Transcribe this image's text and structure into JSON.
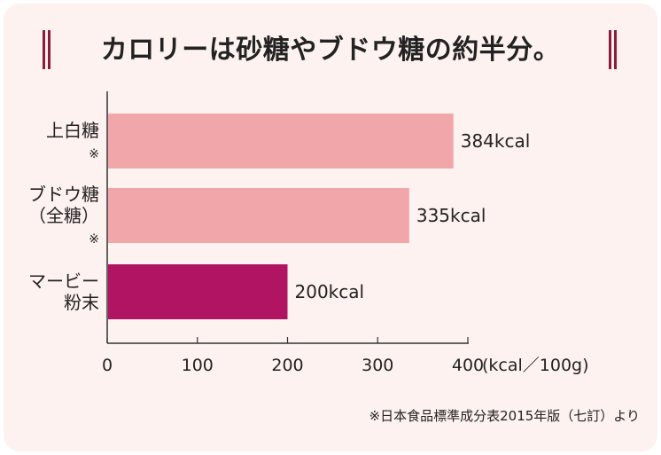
{
  "title": "カロリーは砂糖やブドウ糖の約半分。",
  "unit_label": "(kcal／100g)",
  "source_note": "※日本食品標準成分表2015年版（七訂）より",
  "colors": {
    "background": "#fdf2f0",
    "bar_light": "#f1a7a9",
    "bar_highlight": "#b01462",
    "accent": "#8c1c3c",
    "text": "#222222"
  },
  "chart_data": {
    "type": "bar",
    "orientation": "horizontal",
    "title": "カロリーは砂糖やブドウ糖の約半分。",
    "categories": [
      {
        "lines": [
          "上白糖",
          "※"
        ]
      },
      {
        "lines": [
          "ブドウ糖",
          "（全糖）",
          "※"
        ]
      },
      {
        "lines": [
          "マービー",
          "粉末"
        ]
      }
    ],
    "values": [
      384,
      335,
      200
    ],
    "value_labels": [
      "384kcal",
      "335kcal",
      "200kcal"
    ],
    "highlight_index": 2,
    "xlim": [
      0,
      400
    ],
    "xticks": [
      0,
      100,
      200,
      300,
      400
    ],
    "xtick_labels": [
      "0",
      "100",
      "200",
      "300",
      "400"
    ],
    "xlabel": "(kcal／100g)",
    "ylabel": "",
    "grid": false,
    "legend": "none"
  }
}
